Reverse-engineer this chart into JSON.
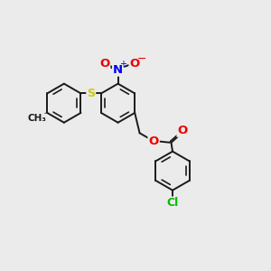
{
  "bg_color": "#ebebeb",
  "bond_color": "#1a1a1a",
  "bond_width": 1.4,
  "atom_colors": {
    "N": "#0000ee",
    "O": "#ee0000",
    "S": "#cccc00",
    "Cl": "#00bb00"
  },
  "ring_r": 0.72,
  "xlim": [
    0,
    10
  ],
  "ylim": [
    0,
    10
  ]
}
